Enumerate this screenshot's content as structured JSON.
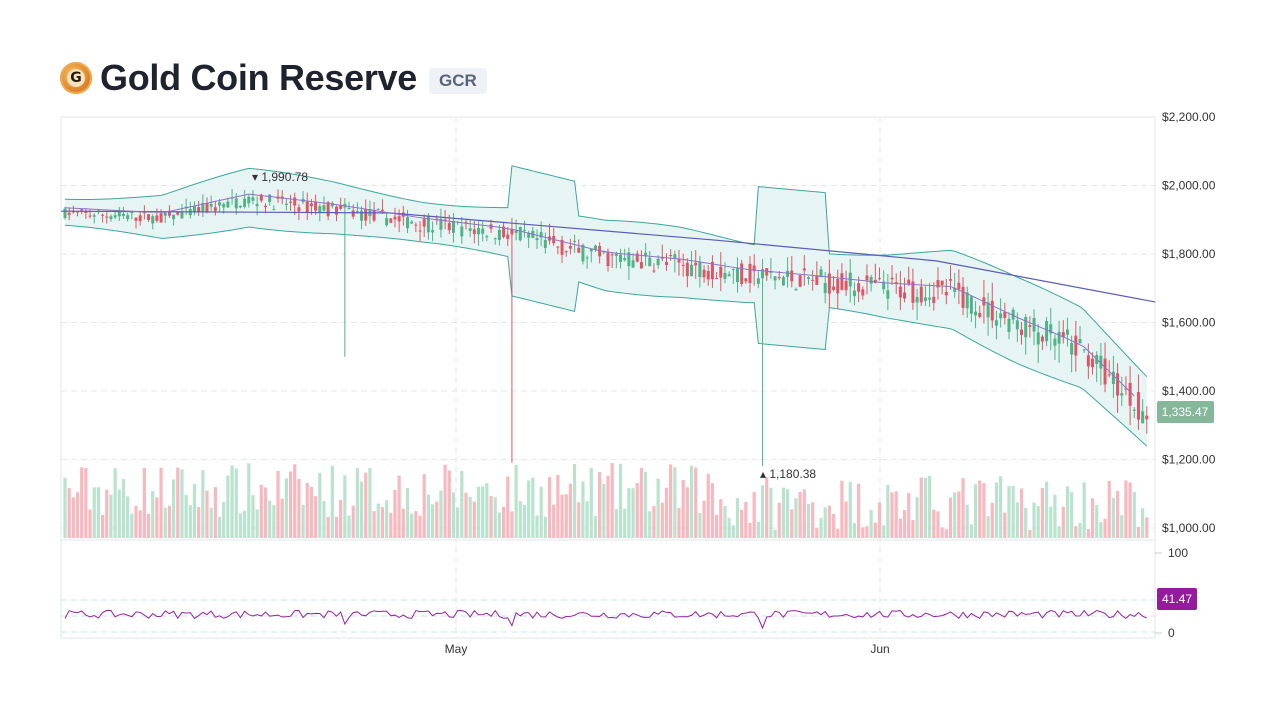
{
  "header": {
    "title": "Gold Coin Reserve",
    "ticker": "GCR",
    "icon": "gold-coin-icon"
  },
  "colors": {
    "up": "#4fb38a",
    "down": "#e05565",
    "up_volume": "#b9e3cf",
    "down_volume": "#f7b8bf",
    "bollinger_line": "#3aa89a",
    "bollinger_fill": "#e6f4f3",
    "sma_long": "#5b5bb8",
    "sma_mid": "#8f72c8",
    "rsi_line": "#9a1fa0",
    "rsi_badge": "#951b9e",
    "price_badge": "#85b79b",
    "grid": "#e3e6ea"
  },
  "chart_data": {
    "type": "candlestick",
    "title": "Gold Coin Reserve (GCR)",
    "price_axis": {
      "ticks": [
        "$2,200.00",
        "$2,000.00",
        "$1,800.00",
        "$1,600.00",
        "$1,400.00",
        "$1,200.00",
        "$1,000.00"
      ],
      "values": [
        2200,
        2000,
        1800,
        1600,
        1400,
        1200,
        1000
      ]
    },
    "x_axis": {
      "ticks": [
        "May",
        "Jun"
      ]
    },
    "rsi_axis": {
      "ticks": [
        "100",
        "0"
      ],
      "bands": [
        70,
        50,
        30
      ]
    },
    "annotations": {
      "high": {
        "label": "1,990.78",
        "value": 1990.78
      },
      "low": {
        "label": "1,180.38",
        "value": 1180.38
      }
    },
    "last_price": "1,335.47",
    "last_rsi": "41.47",
    "series": [
      {
        "name": "price_trend_keypoints",
        "x_frac": [
          0,
          0.09,
          0.17,
          0.25,
          0.33,
          0.41,
          0.5,
          0.57,
          0.63,
          0.7,
          0.76,
          0.82,
          0.88,
          0.94,
          1.0
        ],
        "values": [
          1920,
          1905,
          1960,
          1930,
          1890,
          1860,
          1790,
          1770,
          1740,
          1720,
          1700,
          1690,
          1600,
          1520,
          1335
        ]
      },
      {
        "name": "sma_long",
        "x_frac": [
          0,
          0.3,
          0.6,
          0.8,
          1.0
        ],
        "values": [
          1925,
          1920,
          1840,
          1780,
          1660
        ]
      },
      {
        "name": "volume_range",
        "values": [
          1080,
          1175
        ]
      }
    ],
    "legend": []
  }
}
